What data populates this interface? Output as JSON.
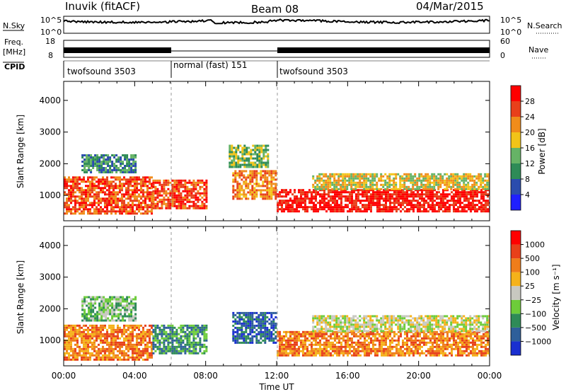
{
  "header": {
    "station": "Inuvik (fitACF)",
    "beam": "Beam 08",
    "date": "04/Mar/2015"
  },
  "nsky_panel": {
    "left_label": "N.Sky",
    "right_label": "N.Search",
    "left_ticks": [
      "10^5",
      "10^0"
    ],
    "right_ticks": [
      "10^5",
      "10^0"
    ]
  },
  "freq_panel": {
    "left_label_1": "Freq.",
    "left_label_2": "[MHz]",
    "right_label": "Nave",
    "left_ticks": [
      "18",
      "8"
    ],
    "right_ticks": [
      "60",
      "0"
    ]
  },
  "cpid": {
    "label": "CPID",
    "segments": [
      {
        "name": "twofsound 3503",
        "start_hour": 0,
        "end_hour": 6
      },
      {
        "name": "normal (fast) 151",
        "start_hour": 6,
        "end_hour": 12
      },
      {
        "name": "twofsound 3503",
        "start_hour": 12,
        "end_hour": 24
      }
    ]
  },
  "chart_data": [
    {
      "type": "heatmap",
      "title": "Power",
      "xlabel": "",
      "ylabel": "Slant Range [km]",
      "xlim": [
        0,
        24
      ],
      "ylim": [
        200,
        4600
      ],
      "y_ticks": [
        1000,
        2000,
        3000,
        4000
      ],
      "colorbar": {
        "label": "Power [dB]",
        "ticks": [
          "4",
          "8",
          "12",
          "16",
          "20",
          "24",
          "28"
        ],
        "colors": [
          "#1f1fff",
          "#2b4cad",
          "#2e8b57",
          "#66b366",
          "#f2c418",
          "#f08c1a",
          "#e8401a",
          "#ff0000"
        ]
      },
      "echo_bands": [
        {
          "x": [
            0.0,
            5.0
          ],
          "y": [
            400,
            1600
          ],
          "level": 6
        },
        {
          "x": [
            1.0,
            4.0
          ],
          "y": [
            1700,
            2300
          ],
          "level": 2
        },
        {
          "x": [
            5.0,
            8.0
          ],
          "y": [
            600,
            1500
          ],
          "level": 6
        },
        {
          "x": [
            9.5,
            12.0
          ],
          "y": [
            900,
            1800
          ],
          "level": 5
        },
        {
          "x": [
            9.3,
            11.5
          ],
          "y": [
            1900,
            2600
          ],
          "level": 3
        },
        {
          "x": [
            12.0,
            24.0
          ],
          "y": [
            500,
            1200
          ],
          "level": 7
        },
        {
          "x": [
            14.0,
            24.0
          ],
          "y": [
            1200,
            1700
          ],
          "level": 4
        }
      ]
    },
    {
      "type": "heatmap",
      "title": "Velocity",
      "xlabel": "Time UT",
      "ylabel": "Slant Range [km]",
      "xlim": [
        0,
        24
      ],
      "ylim": [
        200,
        4600
      ],
      "y_ticks": [
        1000,
        2000,
        3000,
        4000
      ],
      "x_tick_labels": [
        "00:00",
        "04:00",
        "08:00",
        "12:00",
        "16:00",
        "20:00",
        "00:00"
      ],
      "colorbar": {
        "label": "Velocity [m s⁻¹]",
        "ticks": [
          "1000",
          "500",
          "100",
          "25",
          "−25",
          "−100",
          "−500",
          "−1000"
        ],
        "colors": [
          "#1a2fd0",
          "#2e5f9a",
          "#2e8b57",
          "#6dcc3a",
          "#c8c8c0",
          "#f5b21a",
          "#ef7d1a",
          "#e8401a",
          "#ff0000"
        ]
      },
      "echo_bands": [
        {
          "x": [
            0.0,
            5.0
          ],
          "y": [
            400,
            1500
          ],
          "level": 6
        },
        {
          "x": [
            1.0,
            4.0
          ],
          "y": [
            1600,
            2400
          ],
          "level": 3
        },
        {
          "x": [
            5.0,
            8.0
          ],
          "y": [
            600,
            1500
          ],
          "level": 2
        },
        {
          "x": [
            9.5,
            12.0
          ],
          "y": [
            900,
            1900
          ],
          "level": 1
        },
        {
          "x": [
            12.0,
            24.0
          ],
          "y": [
            500,
            1300
          ],
          "level": 6
        },
        {
          "x": [
            14.0,
            24.0
          ],
          "y": [
            1300,
            1800
          ],
          "level": 4
        }
      ]
    }
  ]
}
